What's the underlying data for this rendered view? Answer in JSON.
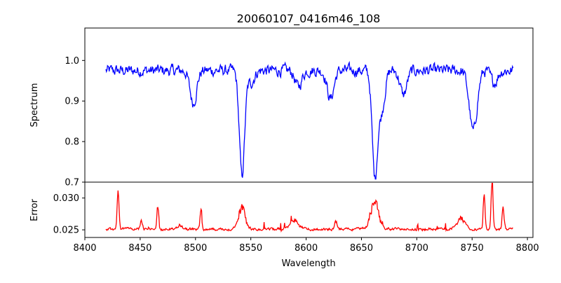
{
  "chart_data": {
    "type": "line",
    "title": "20060107_0416m46_108",
    "xlabel": "Wavelength",
    "xlim": [
      8400,
      8805
    ],
    "xticks": [
      8400,
      8450,
      8500,
      8550,
      8600,
      8650,
      8700,
      8750,
      8800
    ],
    "x_range": [
      8419,
      8787
    ],
    "panels": [
      {
        "name": "spectrum",
        "ylabel": "Spectrum",
        "ylim": [
          0.7,
          1.08
        ],
        "yticks": [
          "0.7",
          "0.8",
          "0.9",
          "1.0"
        ],
        "color": "#0000ff",
        "baseline": 0.975,
        "noise": 0.025,
        "features": [
          {
            "center": 8498,
            "depth": 0.08,
            "width": 3
          },
          {
            "center": 8542,
            "depth": 0.26,
            "width": 2.4
          },
          {
            "center": 8550,
            "depth": 0.03,
            "width": 3
          },
          {
            "center": 8593,
            "depth": 0.04,
            "width": 3
          },
          {
            "center": 8622,
            "depth": 0.07,
            "width": 3
          },
          {
            "center": 8662,
            "depth": 0.25,
            "width": 2.4
          },
          {
            "center": 8668,
            "depth": 0.1,
            "width": 3
          },
          {
            "center": 8688,
            "depth": 0.06,
            "width": 3
          },
          {
            "center": 8751,
            "depth": 0.15,
            "width": 3.5
          },
          {
            "center": 8770,
            "depth": 0.03,
            "width": 3
          }
        ]
      },
      {
        "name": "error",
        "ylabel": "Error",
        "ylim": [
          0.0238,
          0.0325
        ],
        "yticks": [
          "0.025",
          "0.030"
        ],
        "color": "#ff0000",
        "baseline": 0.0251,
        "noise": 0.0004,
        "features": [
          {
            "center": 8430,
            "height": 0.0064,
            "width": 0.8
          },
          {
            "center": 8451,
            "height": 0.0015,
            "width": 1.0
          },
          {
            "center": 8466,
            "height": 0.0038,
            "width": 0.8
          },
          {
            "center": 8486,
            "height": 0.0007,
            "width": 2.0
          },
          {
            "center": 8505,
            "height": 0.0034,
            "width": 0.8
          },
          {
            "center": 8542,
            "height": 0.0035,
            "width": 3.0
          },
          {
            "center": 8590,
            "height": 0.0012,
            "width": 4.0
          },
          {
            "center": 8627,
            "height": 0.0014,
            "width": 1.0
          },
          {
            "center": 8662,
            "height": 0.0043,
            "width": 3.5
          },
          {
            "center": 8740,
            "height": 0.0015,
            "width": 4.0
          },
          {
            "center": 8761,
            "height": 0.0048,
            "width": 0.8
          },
          {
            "center": 8768,
            "height": 0.0078,
            "width": 0.8
          },
          {
            "center": 8778,
            "height": 0.0034,
            "width": 0.9
          }
        ]
      }
    ]
  }
}
